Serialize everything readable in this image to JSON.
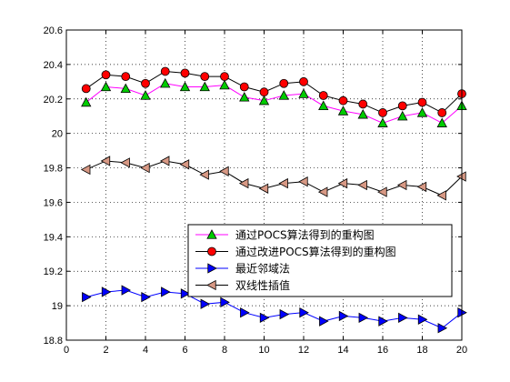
{
  "chart_data": {
    "type": "line",
    "title": "",
    "xlabel": "",
    "ylabel": "",
    "xlim": [
      0,
      20
    ],
    "ylim": [
      18.8,
      20.6
    ],
    "x_ticks": [
      0,
      2,
      4,
      6,
      8,
      10,
      12,
      14,
      16,
      18,
      20
    ],
    "y_ticks": [
      18.8,
      19,
      19.2,
      19.4,
      19.6,
      19.8,
      20,
      20.2,
      20.4,
      20.6
    ],
    "x_tick_labels": [
      "0",
      "2",
      "4",
      "6",
      "8",
      "10",
      "12",
      "14",
      "16",
      "18",
      "20"
    ],
    "y_tick_labels": [
      "18.8",
      "19",
      "19.2",
      "19.4",
      "19.6",
      "19.8",
      "20",
      "20.2",
      "20.4",
      "20.6"
    ],
    "grid": true,
    "grid_style": "dotted",
    "legend_position": "lower-right",
    "x": [
      1,
      2,
      3,
      4,
      5,
      6,
      7,
      8,
      9,
      10,
      11,
      12,
      13,
      14,
      15,
      16,
      17,
      18,
      19,
      20
    ],
    "series": [
      {
        "name": "通过POCS算法得到的重构图",
        "color": "#ff00ff",
        "marker": "triangle-up",
        "marker_fill": "#00cc00",
        "values": [
          20.18,
          20.27,
          20.26,
          20.22,
          20.29,
          20.27,
          20.27,
          20.28,
          20.21,
          20.19,
          20.22,
          20.23,
          20.16,
          20.13,
          20.11,
          20.06,
          20.1,
          20.12,
          20.06,
          20.16
        ]
      },
      {
        "name": "通过改进POCS算法得到的重构图",
        "color": "#000000",
        "marker": "circle",
        "marker_fill": "#ff0000",
        "values": [
          20.26,
          20.34,
          20.33,
          20.29,
          20.36,
          20.35,
          20.33,
          20.33,
          20.27,
          20.24,
          20.29,
          20.3,
          20.22,
          20.19,
          20.17,
          20.12,
          20.16,
          20.18,
          20.12,
          20.23
        ]
      },
      {
        "name": "最近邻域法",
        "color": "#0000ff",
        "marker": "triangle-right",
        "marker_fill": "#0000ff",
        "values": [
          19.05,
          19.08,
          19.09,
          19.05,
          19.08,
          19.07,
          19.01,
          19.02,
          18.96,
          18.93,
          18.95,
          18.96,
          18.91,
          18.94,
          18.93,
          18.91,
          18.93,
          18.92,
          18.87,
          18.96
        ]
      },
      {
        "name": "双线性插值",
        "color": "#000000",
        "marker": "triangle-left",
        "marker_fill": "#d79884",
        "values": [
          19.79,
          19.84,
          19.83,
          19.8,
          19.84,
          19.82,
          19.76,
          19.78,
          19.71,
          19.68,
          19.71,
          19.72,
          19.66,
          19.71,
          19.7,
          19.66,
          19.7,
          19.69,
          19.64,
          19.75
        ]
      }
    ]
  }
}
